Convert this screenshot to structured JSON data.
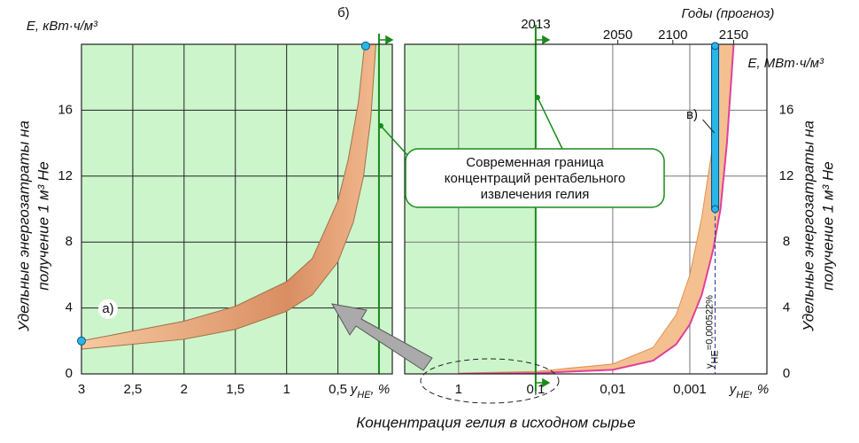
{
  "chart_data": [
    {
      "type": "band",
      "ylabel_top": "E, кВт·ч/м³",
      "ylabel": [
        "Удельные энергозатраты на",
        "получение 1 м³ Не"
      ],
      "xlabel": [
        "y",
        "НЕ",
        ", %"
      ],
      "xlim": [
        3,
        -0.03
      ],
      "xticks": [
        3,
        {
          "value": 2.5,
          "label": "2,5"
        },
        2,
        {
          "value": 1.5,
          "label": "1,5"
        },
        1,
        {
          "value": 0.5,
          "label": "0,5"
        }
      ],
      "ylim": [
        0,
        20
      ],
      "yticks": [
        0,
        4,
        8,
        12,
        16
      ],
      "grid": true,
      "background": "#ccf5cc",
      "boundary_x": 0.1,
      "boundary_color": "#1a8a1a",
      "color": "#e8a070",
      "lower": {
        "x": [
          3,
          2.5,
          2,
          1.5,
          1,
          0.75,
          0.5,
          0.35,
          0.25,
          0.18,
          0.13
        ],
        "values": [
          1.5,
          1.8,
          2.1,
          2.7,
          3.8,
          4.8,
          6.8,
          9.2,
          12,
          15.5,
          20
        ]
      },
      "upper": {
        "x": [
          3,
          2.5,
          2,
          1.5,
          1,
          0.75,
          0.5,
          0.4,
          0.3,
          0.24
        ],
        "values": [
          2,
          2.6,
          3.2,
          4.1,
          5.6,
          7,
          10.5,
          13,
          16.5,
          20
        ]
      },
      "points": [
        {
          "label": "а)",
          "x": 3,
          "y": 2
        },
        {
          "label": "б)",
          "x": 0.23,
          "y": 19.9
        }
      ],
      "point_color": "#29b6e8"
    },
    {
      "type": "band",
      "xscale": "log",
      "ylabel_top": "E, МВт·ч/м³",
      "ylabel": [
        "Удельные энергозатраты на",
        "получение 1 м³ Не"
      ],
      "xlabel": [
        "y",
        "НЕ",
        ", %"
      ],
      "xlim": [
        5,
        0.0001
      ],
      "xticks": [
        1,
        {
          "value": 0.1,
          "label": "0,1"
        },
        {
          "value": 0.01,
          "label": "0,01"
        },
        {
          "value": 0.001,
          "label": "0,001"
        }
      ],
      "x2label": "Годы (прогноз)",
      "x2ticks": [
        {
          "value": 0.1,
          "label": "2013"
        },
        {
          "value": 0.0086,
          "label": "2050"
        },
        {
          "value": 0.00166,
          "label": "2100"
        },
        {
          "value": 0.00027,
          "label": "2150"
        }
      ],
      "ylim": [
        0,
        20
      ],
      "yticks": [
        0,
        4,
        8,
        12,
        16
      ],
      "grid": true,
      "background": "#ccf5cc",
      "boundary_x": 0.1,
      "boundary_color": "#1a8a1a",
      "color": "#f5c090",
      "edge_color": "#e0409a",
      "lower": {
        "x": [
          1,
          0.1,
          0.01,
          0.003,
          0.0015,
          0.001,
          0.0007,
          0.0005,
          0.0004,
          0.00033,
          0.00027
        ],
        "values": [
          0,
          0.05,
          0.25,
          0.8,
          1.8,
          3,
          4.8,
          7.5,
          10,
          14,
          20
        ]
      },
      "upper": {
        "x": [
          1,
          0.1,
          0.01,
          0.003,
          0.0015,
          0.001,
          0.0007,
          0.0005,
          0.00045,
          0.00042
        ],
        "values": [
          0.05,
          0.15,
          0.6,
          1.6,
          3.6,
          6,
          9.5,
          14,
          17,
          20
        ]
      },
      "range_bar": {
        "x": 0.000522,
        "low": 10,
        "high": 19.9,
        "label": "в)",
        "color": "#29b6e8"
      },
      "marker_label": [
        "y",
        "НЕ",
        "=0,000522%"
      ]
    }
  ],
  "xlabel": "Концентрация гелия в исходном сырье",
  "callout": [
    "Современная граница",
    "концентраций  рентабельного",
    "извлечения гелия"
  ]
}
